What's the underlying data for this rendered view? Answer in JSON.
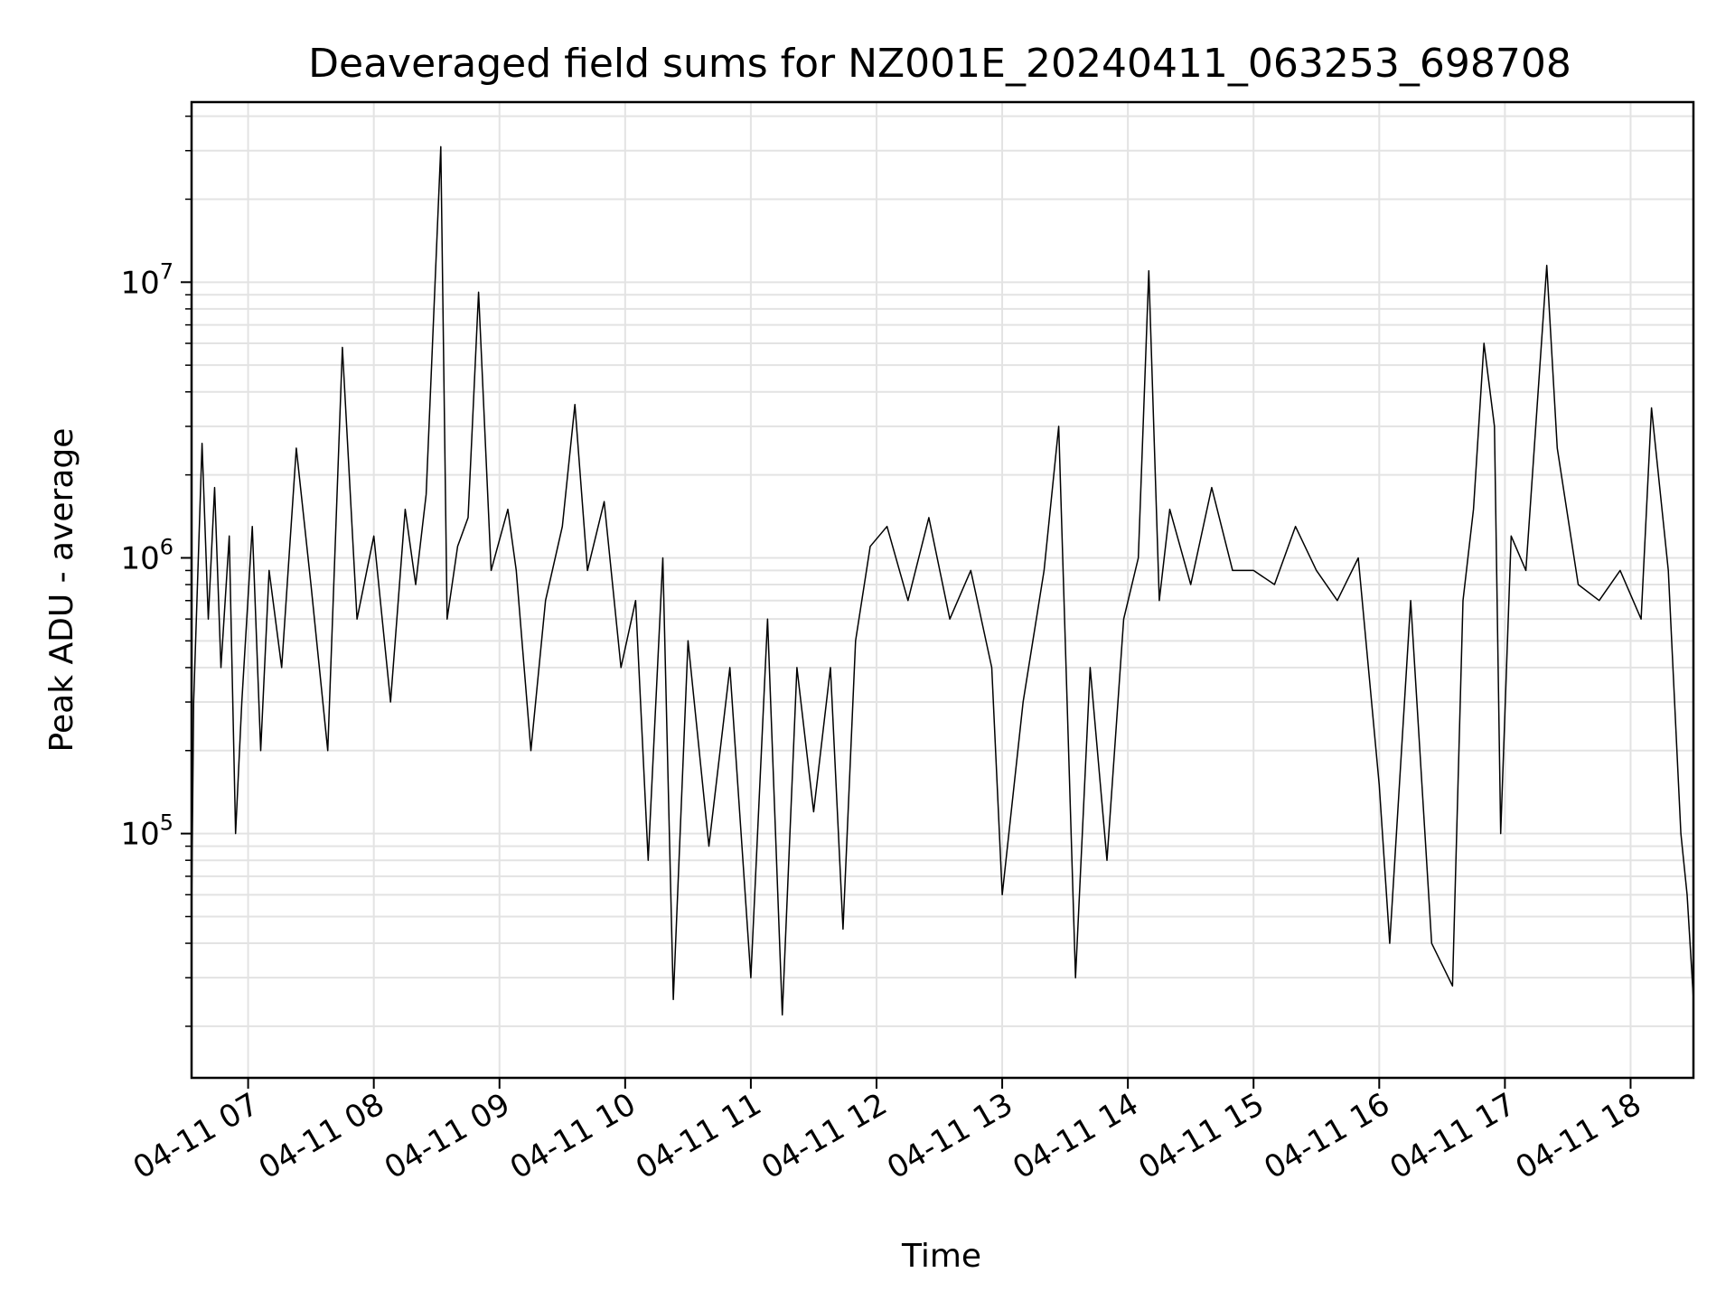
{
  "chart_data": {
    "type": "line",
    "title": "Deaveraged field sums for NZ001E_20240411_063253_698708",
    "xlabel": "Time",
    "ylabel": "Peak ADU - average",
    "yscale": "log",
    "ylim": [
      13000,
      45000000
    ],
    "xlim": [
      "2024-04-11 06:33",
      "2024-04-11 18:30"
    ],
    "x_tick_labels": [
      "04-11 07",
      "04-11 08",
      "04-11 09",
      "04-11 10",
      "04-11 11",
      "04-11 12",
      "04-11 13",
      "04-11 14",
      "04-11 15",
      "04-11 16",
      "04-11 17",
      "04-11 18"
    ],
    "y_tick_labels": [
      {
        "base": "10",
        "exp": "5",
        "value": 100000
      },
      {
        "base": "10",
        "exp": "6",
        "value": 1000000
      },
      {
        "base": "10",
        "exp": "7",
        "value": 10000000
      }
    ],
    "grid": true,
    "line_color": "#000000",
    "series": [
      {
        "x": [
          "2024-04-11 06:33",
          "2024-04-11 06:34",
          "2024-04-11 06:38",
          "2024-04-11 06:41",
          "2024-04-11 06:44",
          "2024-04-11 06:47",
          "2024-04-11 06:51",
          "2024-04-11 06:54",
          "2024-04-11 06:57",
          "2024-04-11 07:02",
          "2024-04-11 07:06",
          "2024-04-11 07:10",
          "2024-04-11 07:16",
          "2024-04-11 07:23",
          "2024-04-11 07:30",
          "2024-04-11 07:38",
          "2024-04-11 07:45",
          "2024-04-11 07:52",
          "2024-04-11 08:00",
          "2024-04-11 08:08",
          "2024-04-11 08:15",
          "2024-04-11 08:20",
          "2024-04-11 08:25",
          "2024-04-11 08:32",
          "2024-04-11 08:35",
          "2024-04-11 08:40",
          "2024-04-11 08:45",
          "2024-04-11 08:50",
          "2024-04-11 08:56",
          "2024-04-11 09:04",
          "2024-04-11 09:08",
          "2024-04-11 09:15",
          "2024-04-11 09:22",
          "2024-04-11 09:30",
          "2024-04-11 09:36",
          "2024-04-11 09:42",
          "2024-04-11 09:50",
          "2024-04-11 09:58",
          "2024-04-11 10:05",
          "2024-04-11 10:11",
          "2024-04-11 10:18",
          "2024-04-11 10:23",
          "2024-04-11 10:30",
          "2024-04-11 10:40",
          "2024-04-11 10:50",
          "2024-04-11 11:00",
          "2024-04-11 11:08",
          "2024-04-11 11:15",
          "2024-04-11 11:22",
          "2024-04-11 11:30",
          "2024-04-11 11:38",
          "2024-04-11 11:44",
          "2024-04-11 11:50",
          "2024-04-11 11:57",
          "2024-04-11 12:05",
          "2024-04-11 12:15",
          "2024-04-11 12:25",
          "2024-04-11 12:35",
          "2024-04-11 12:45",
          "2024-04-11 12:55",
          "2024-04-11 13:00",
          "2024-04-11 13:10",
          "2024-04-11 13:20",
          "2024-04-11 13:27",
          "2024-04-11 13:35",
          "2024-04-11 13:42",
          "2024-04-11 13:50",
          "2024-04-11 13:58",
          "2024-04-11 14:05",
          "2024-04-11 14:10",
          "2024-04-11 14:15",
          "2024-04-11 14:20",
          "2024-04-11 14:30",
          "2024-04-11 14:40",
          "2024-04-11 14:50",
          "2024-04-11 15:00",
          "2024-04-11 15:10",
          "2024-04-11 15:20",
          "2024-04-11 15:30",
          "2024-04-11 15:40",
          "2024-04-11 15:50",
          "2024-04-11 16:00",
          "2024-04-11 16:05",
          "2024-04-11 16:15",
          "2024-04-11 16:25",
          "2024-04-11 16:35",
          "2024-04-11 16:40",
          "2024-04-11 16:45",
          "2024-04-11 16:50",
          "2024-04-11 16:55",
          "2024-04-11 16:58",
          "2024-04-11 17:03",
          "2024-04-11 17:10",
          "2024-04-11 17:20",
          "2024-04-11 17:25",
          "2024-04-11 17:35",
          "2024-04-11 17:45",
          "2024-04-11 17:55",
          "2024-04-11 18:05",
          "2024-04-11 18:10",
          "2024-04-11 18:18",
          "2024-04-11 18:24",
          "2024-04-11 18:27",
          "2024-04-11 18:30"
        ],
        "y": [
          50000,
          300000,
          2600000,
          600000,
          1800000,
          400000,
          1200000,
          100000,
          300000,
          1300000,
          200000,
          900000,
          400000,
          2500000,
          800000,
          200000,
          5800000,
          600000,
          1200000,
          300000,
          1500000,
          800000,
          1700000,
          31000000,
          600000,
          1100000,
          1400000,
          9200000,
          900000,
          1500000,
          900000,
          200000,
          700000,
          1300000,
          3600000,
          900000,
          1600000,
          400000,
          700000,
          80000,
          1000000,
          25000,
          500000,
          90000,
          400000,
          30000,
          600000,
          22000,
          400000,
          120000,
          400000,
          45000,
          500000,
          1100000,
          1300000,
          700000,
          1400000,
          600000,
          900000,
          400000,
          60000,
          300000,
          900000,
          3000000,
          30000,
          400000,
          80000,
          600000,
          1000000,
          11000000,
          700000,
          1500000,
          800000,
          1800000,
          900000,
          900000,
          800000,
          1300000,
          900000,
          700000,
          1000000,
          150000,
          40000,
          700000,
          40000,
          28000,
          700000,
          1500000,
          6000000,
          3000000,
          100000,
          1200000,
          900000,
          11500000,
          2500000,
          800000,
          700000,
          900000,
          600000,
          3500000,
          900000,
          100000,
          60000,
          25000
        ]
      }
    ]
  }
}
